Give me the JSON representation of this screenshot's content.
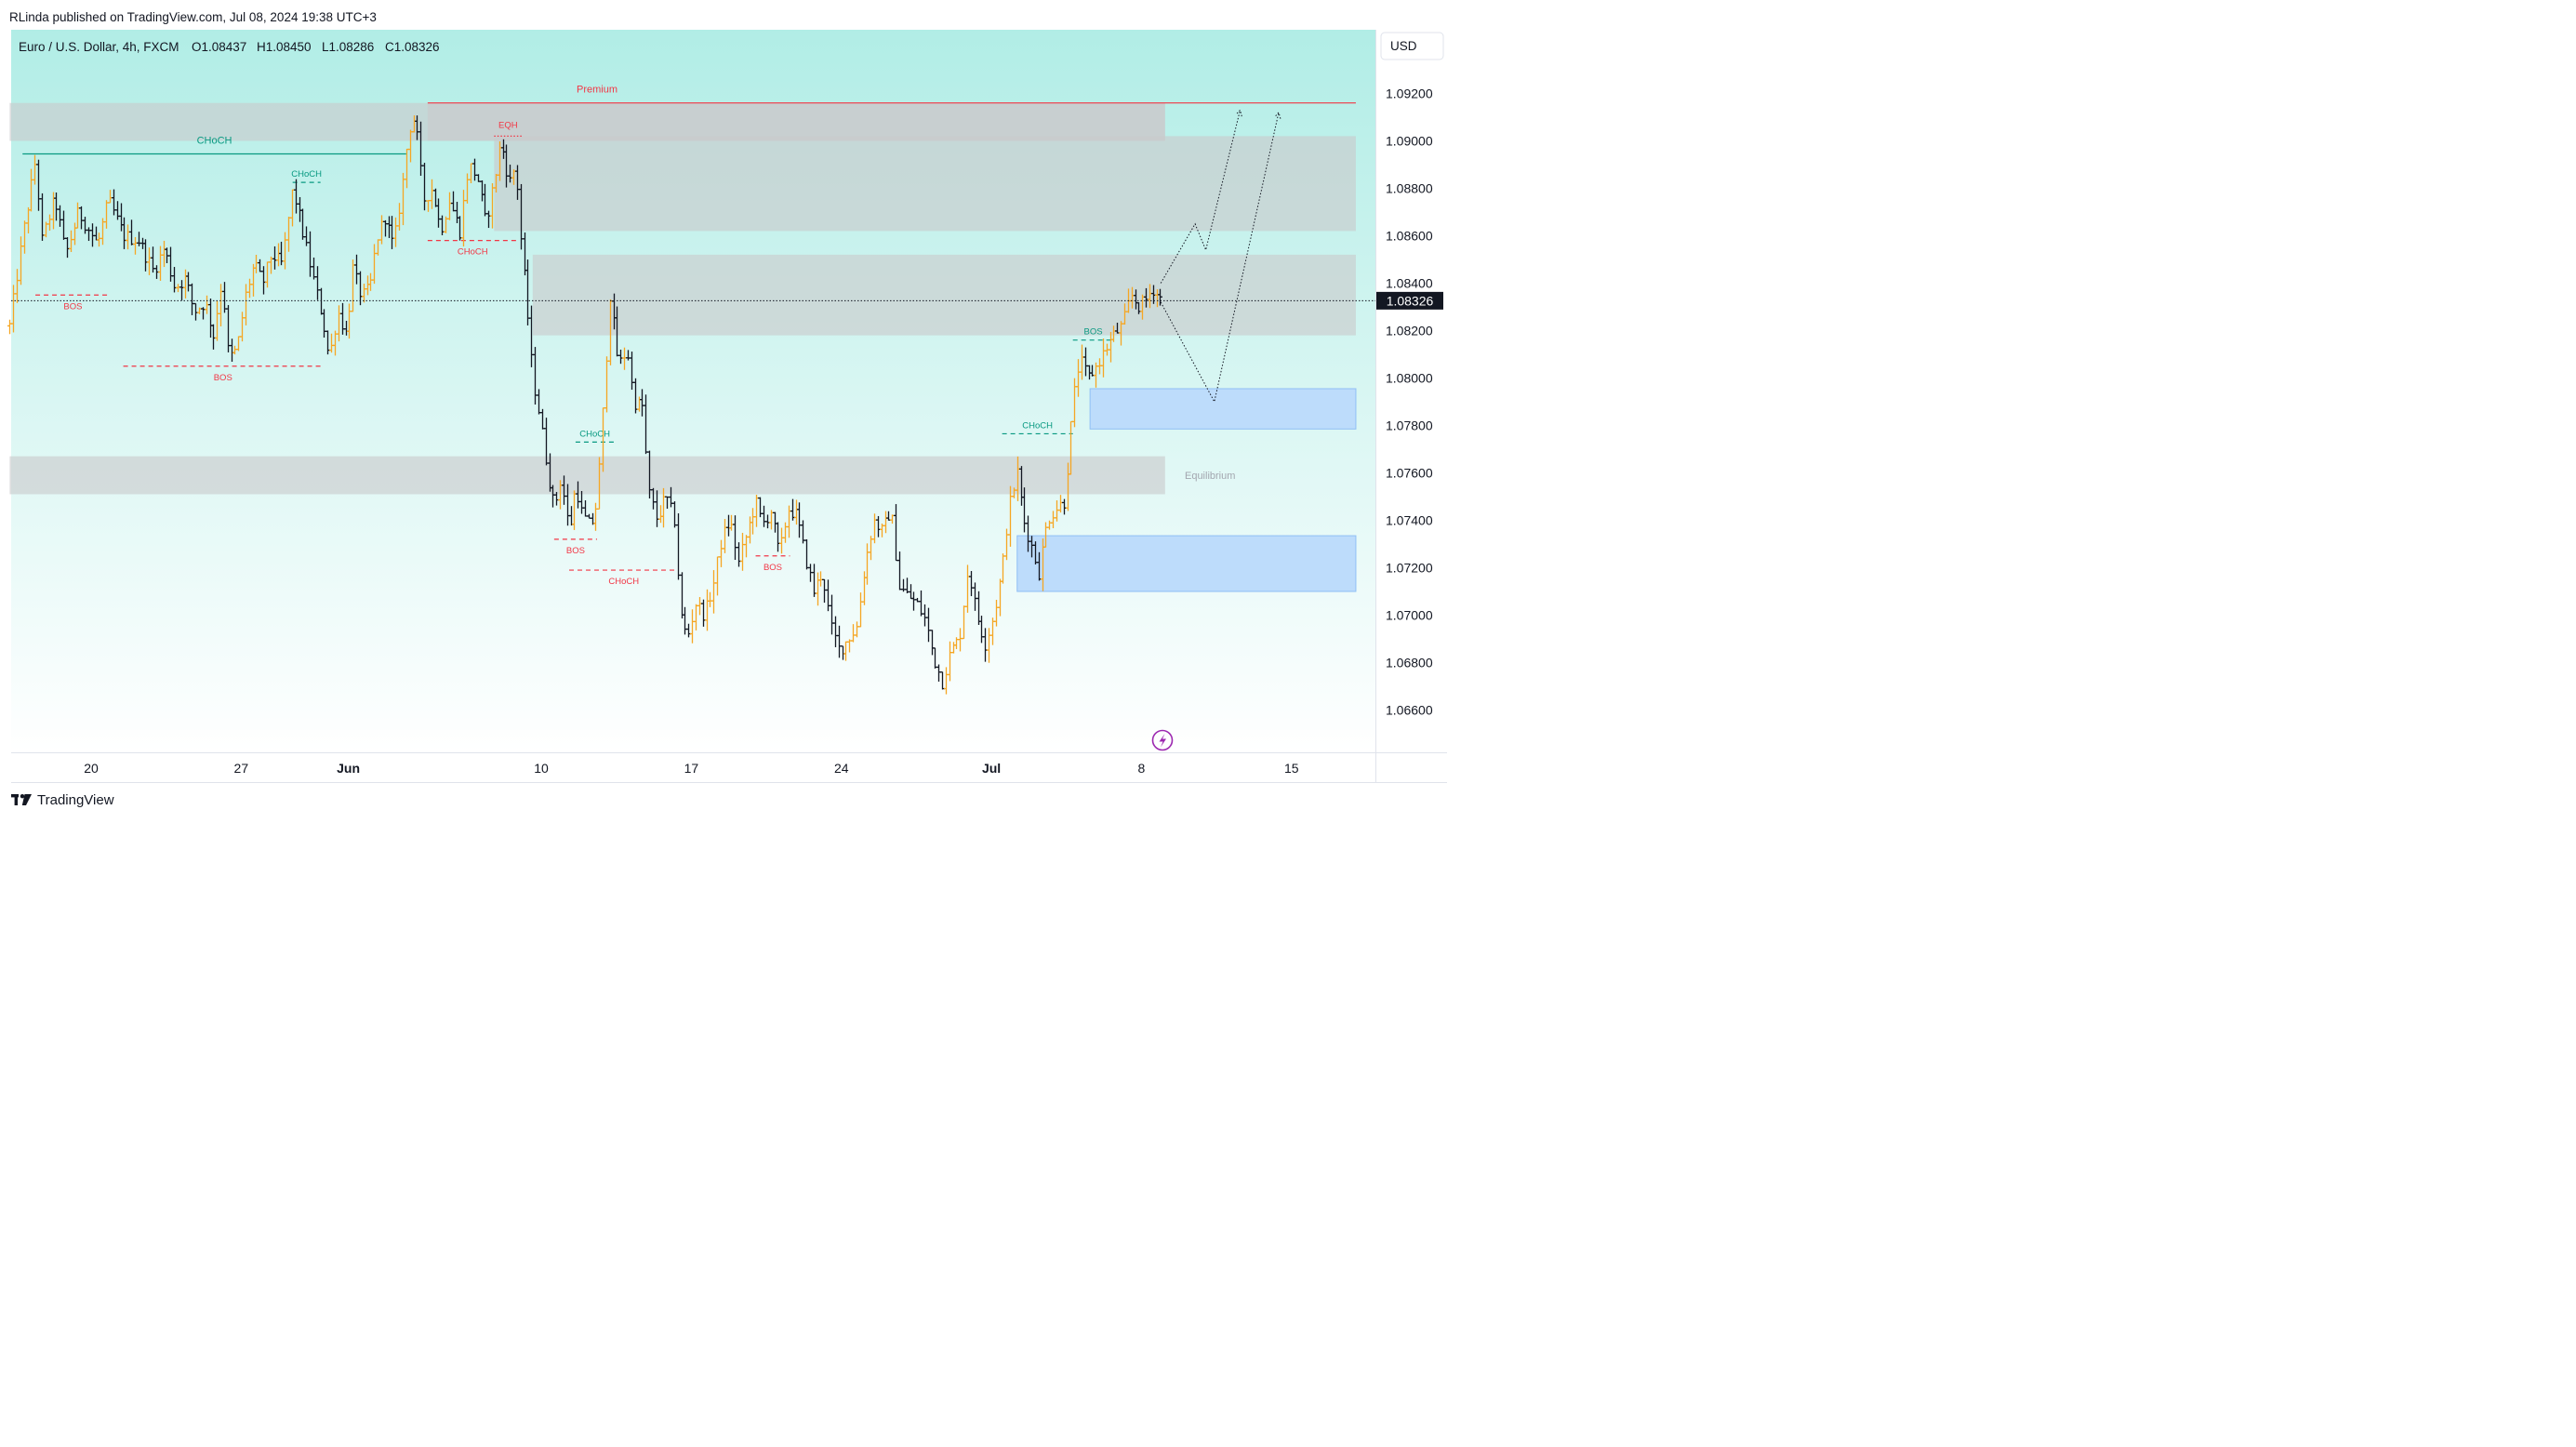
{
  "header": {
    "published": "RLinda published on TradingView.com, Jul 08, 2024 19:38 UTC+3",
    "symbol": "Euro / U.S. Dollar, 4h, FXCM",
    "ohlc": {
      "O": "O1.08437",
      "H": "H1.08450",
      "L": "L1.08286",
      "C": "C1.08326"
    }
  },
  "currency_button": "USD",
  "footer_brand": "TradingView",
  "colors": {
    "up": "#f5a623",
    "down": "#131722",
    "bear_line": "#f23645",
    "bull_line": "#089981",
    "grey_zone": "#d1d4dc",
    "blue_zone": "#bbd9fb"
  },
  "chart_data": {
    "type": "bar",
    "subtype": "ohlc-price-chart",
    "title": "Euro / U.S. Dollar, 4h, FXCM",
    "ylim": [
      1.0645,
      1.0948
    ],
    "y_ticks": [
      "1.09200",
      "1.09000",
      "1.08800",
      "1.08600",
      "1.08400",
      "1.08200",
      "1.08000",
      "1.07800",
      "1.07600",
      "1.07400",
      "1.07200",
      "1.07000",
      "1.06800",
      "1.06600"
    ],
    "x_ticks": [
      {
        "label": "20",
        "day": 0
      },
      {
        "label": "27",
        "day": 7
      },
      {
        "label": "Jun",
        "day": 12
      },
      {
        "label": "10",
        "day": 21
      },
      {
        "label": "17",
        "day": 28
      },
      {
        "label": "24",
        "day": 35
      },
      {
        "label": "Jul",
        "day": 42
      },
      {
        "label": "8",
        "day": 49
      },
      {
        "label": "15",
        "day": 56
      }
    ],
    "last_price": "1.08326",
    "last_price_value": 1.08326,
    "path": [
      [
        -3.8,
        1.0822
      ],
      [
        -3.2,
        1.086
      ],
      [
        -2.6,
        1.0892
      ],
      [
        -2.3,
        1.0858
      ],
      [
        -1.7,
        1.0876
      ],
      [
        -1.2,
        1.0852
      ],
      [
        -0.6,
        1.087
      ],
      [
        0.3,
        1.0856
      ],
      [
        0.8,
        1.0875
      ],
      [
        1.5,
        1.086
      ],
      [
        2.2,
        1.0858
      ],
      [
        2.9,
        1.0845
      ],
      [
        3.4,
        1.0855
      ],
      [
        3.9,
        1.0838
      ],
      [
        4.4,
        1.0842
      ],
      [
        4.8,
        1.0828
      ],
      [
        5.3,
        1.0832
      ],
      [
        5.7,
        1.0818
      ],
      [
        6.1,
        1.0842
      ],
      [
        6.4,
        1.0808
      ],
      [
        6.8,
        1.0812
      ],
      [
        7.2,
        1.0835
      ],
      [
        7.6,
        1.0848
      ],
      [
        8.0,
        1.084
      ],
      [
        8.4,
        1.0852
      ],
      [
        8.9,
        1.0848
      ],
      [
        9.4,
        1.088
      ],
      [
        9.9,
        1.086
      ],
      [
        10.3,
        1.0844
      ],
      [
        10.8,
        1.0825
      ],
      [
        11.1,
        1.0808
      ],
      [
        11.5,
        1.0828
      ],
      [
        11.9,
        1.0818
      ],
      [
        12.2,
        1.0846
      ],
      [
        12.6,
        1.0834
      ],
      [
        13.0,
        1.0838
      ],
      [
        13.3,
        1.0858
      ],
      [
        13.7,
        1.0868
      ],
      [
        14.1,
        1.0855
      ],
      [
        14.5,
        1.088
      ],
      [
        14.8,
        1.0905
      ],
      [
        15.1,
        1.091
      ],
      [
        15.5,
        1.0875
      ],
      [
        15.9,
        1.088
      ],
      [
        16.3,
        1.0862
      ],
      [
        16.7,
        1.0875
      ],
      [
        17.2,
        1.0862
      ],
      [
        17.6,
        1.089
      ],
      [
        18.0,
        1.0885
      ],
      [
        18.4,
        1.0865
      ],
      [
        18.8,
        1.0883
      ],
      [
        19.1,
        1.09
      ],
      [
        19.5,
        1.0882
      ],
      [
        19.8,
        1.089
      ],
      [
        20.0,
        1.0862
      ],
      [
        20.3,
        1.0833
      ],
      [
        20.6,
        1.08
      ],
      [
        20.9,
        1.0785
      ],
      [
        21.3,
        1.076
      ],
      [
        21.6,
        1.0745
      ],
      [
        21.9,
        1.0758
      ],
      [
        22.3,
        1.0735
      ],
      [
        22.6,
        1.0755
      ],
      [
        22.9,
        1.0742
      ],
      [
        23.3,
        1.0737
      ],
      [
        23.6,
        1.0748
      ],
      [
        23.9,
        1.079
      ],
      [
        24.2,
        1.0835
      ],
      [
        24.6,
        1.0805
      ],
      [
        25.0,
        1.0812
      ],
      [
        25.3,
        1.079
      ],
      [
        25.7,
        1.0788
      ],
      [
        26.0,
        1.0752
      ],
      [
        26.4,
        1.074
      ],
      [
        26.8,
        1.075
      ],
      [
        27.2,
        1.074
      ],
      [
        27.5,
        1.07
      ],
      [
        27.8,
        1.069
      ],
      [
        28.2,
        1.0705
      ],
      [
        28.6,
        1.07
      ],
      [
        29.0,
        1.0712
      ],
      [
        29.4,
        1.0732
      ],
      [
        29.8,
        1.074
      ],
      [
        30.2,
        1.0722
      ],
      [
        30.6,
        1.0735
      ],
      [
        31.0,
        1.0748
      ],
      [
        31.3,
        1.0738
      ],
      [
        31.7,
        1.0744
      ],
      [
        32.1,
        1.0725
      ],
      [
        32.5,
        1.0745
      ],
      [
        32.9,
        1.0742
      ],
      [
        33.3,
        1.0725
      ],
      [
        33.7,
        1.071
      ],
      [
        34.1,
        1.0718
      ],
      [
        34.5,
        1.0695
      ],
      [
        34.9,
        1.0685
      ],
      [
        35.3,
        1.069
      ],
      [
        35.7,
        1.0695
      ],
      [
        36.1,
        1.0722
      ],
      [
        36.5,
        1.074
      ],
      [
        36.9,
        1.0735
      ],
      [
        37.3,
        1.0745
      ],
      [
        37.7,
        1.0712
      ],
      [
        38.1,
        1.0708
      ],
      [
        38.5,
        1.0705
      ],
      [
        38.9,
        1.0698
      ],
      [
        39.3,
        1.0682
      ],
      [
        39.7,
        1.0672
      ],
      [
        40.1,
        1.0685
      ],
      [
        40.5,
        1.069
      ],
      [
        40.9,
        1.072
      ],
      [
        41.3,
        1.07
      ],
      [
        41.7,
        1.0688
      ],
      [
        42.1,
        1.07
      ],
      [
        42.5,
        1.072
      ],
      [
        42.8,
        1.0745
      ],
      [
        43.2,
        1.076
      ],
      [
        43.5,
        1.074
      ],
      [
        43.9,
        1.0728
      ],
      [
        44.2,
        1.0718
      ],
      [
        44.6,
        1.074
      ],
      [
        45.0,
        1.0745
      ],
      [
        45.4,
        1.0748
      ],
      [
        45.8,
        1.079
      ],
      [
        46.1,
        1.0808
      ],
      [
        46.5,
        1.08
      ],
      [
        46.9,
        1.0805
      ],
      [
        47.3,
        1.0812
      ],
      [
        47.7,
        1.0818
      ],
      [
        48.1,
        1.0822
      ],
      [
        48.5,
        1.0835
      ],
      [
        48.9,
        1.083
      ],
      [
        49.2,
        1.0833
      ],
      [
        49.5,
        1.0838
      ],
      [
        49.9,
        1.0833
      ]
    ],
    "zones": [
      {
        "type": "grey",
        "d0": -3.8,
        "d1": 50.1,
        "top": 1.0916,
        "bottom": 1.09
      },
      {
        "type": "grey",
        "d0": 18.8,
        "d1": 59.0,
        "top": 1.0902,
        "bottom": 1.0862
      },
      {
        "type": "grey",
        "d0": 15.7,
        "d1": 50.1,
        "top": 1.0916,
        "bottom": 1.09
      },
      {
        "type": "grey",
        "d0": 20.6,
        "d1": 59.0,
        "top": 1.0852,
        "bottom": 1.0818
      },
      {
        "type": "grey",
        "d0": -3.8,
        "d1": 50.1,
        "top": 1.0767,
        "bottom": 1.0751
      },
      {
        "type": "blue",
        "d0": 46.6,
        "d1": 59.0,
        "top": 1.07955,
        "bottom": 1.07785
      },
      {
        "type": "blue",
        "d0": 43.2,
        "d1": 59.0,
        "top": 1.07335,
        "bottom": 1.071
      }
    ],
    "levels": [
      {
        "label": "Premium",
        "kind": "bear-solid",
        "d0": 15.7,
        "d1": 59.0,
        "price": 1.0916
      },
      {
        "label": "CHoCH",
        "kind": "bull-solid",
        "d0": -3.2,
        "d1": 14.7,
        "price": 1.08945
      },
      {
        "label": "CHoCH",
        "kind": "bull-dash",
        "d0": 9.4,
        "d1": 10.7,
        "price": 1.08825
      },
      {
        "label": "EQH",
        "kind": "bear-dot",
        "d0": 18.8,
        "d1": 20.1,
        "price": 1.0902
      },
      {
        "label": "CHoCH",
        "kind": "bear-dash",
        "d0": 15.7,
        "d1": 19.9,
        "price": 1.0858
      },
      {
        "label": "BOS",
        "kind": "bear-dash",
        "d0": -2.6,
        "d1": 0.9,
        "price": 1.0835
      },
      {
        "label": "BOS",
        "kind": "bear-dash",
        "d0": 1.5,
        "d1": 10.8,
        "price": 1.0805
      },
      {
        "label": "CHoCH",
        "kind": "bull-dash",
        "d0": 22.6,
        "d1": 24.4,
        "price": 1.0773
      },
      {
        "label": "BOS",
        "kind": "bear-dash",
        "d0": 21.6,
        "d1": 23.6,
        "price": 1.0732
      },
      {
        "label": "CHoCH",
        "kind": "bear-dash",
        "d0": 22.3,
        "d1": 27.4,
        "price": 1.0719
      },
      {
        "label": "BOS",
        "kind": "bear-dash",
        "d0": 31.0,
        "d1": 32.6,
        "price": 1.0725
      },
      {
        "label": "CHoCH",
        "kind": "bull-dash",
        "d0": 42.5,
        "d1": 45.8,
        "price": 1.07765
      },
      {
        "label": "BOS",
        "kind": "bull-dash",
        "d0": 45.8,
        "d1": 47.7,
        "price": 1.0816
      }
    ],
    "annotations": [
      {
        "label": "Equilibrium",
        "day": 52.2,
        "price": 1.0759
      }
    ],
    "projection_1": [
      [
        49.9,
        1.084
      ],
      [
        51.5,
        1.0865
      ],
      [
        52.0,
        1.0854
      ],
      [
        53.6,
        1.0913
      ]
    ],
    "projection_2": [
      [
        49.9,
        1.0832
      ],
      [
        52.4,
        1.079
      ],
      [
        55.4,
        1.0912
      ]
    ]
  }
}
